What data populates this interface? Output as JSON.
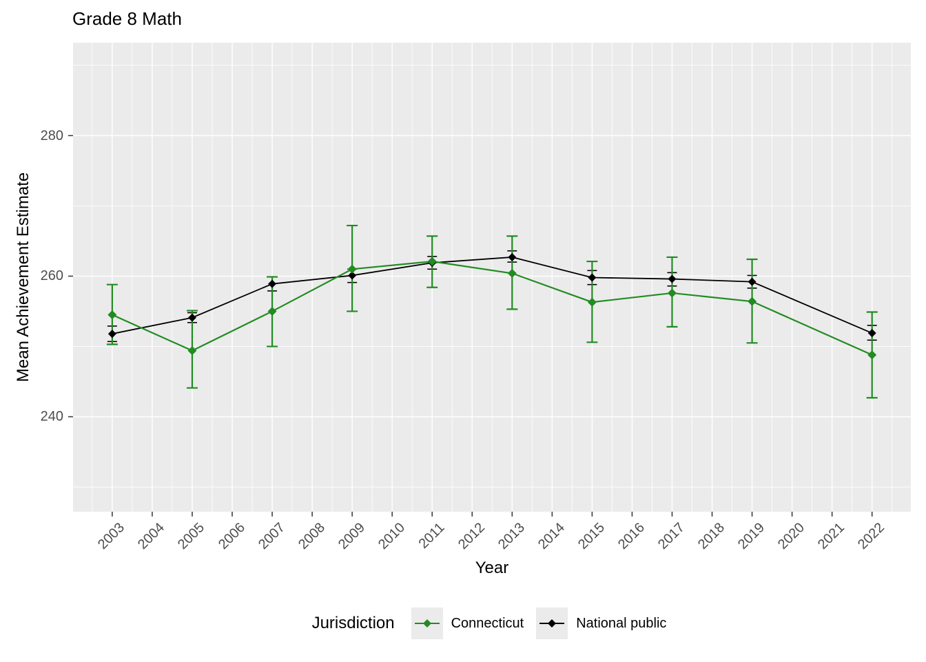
{
  "title": "Grade 8 Math",
  "chart_data": {
    "type": "line",
    "title": "Grade 8 Math",
    "xlabel": "Year",
    "ylabel": "Mean Achievement Estimate",
    "legend_title": "Jurisdiction",
    "legend_position": "bottom",
    "grid": true,
    "x_ticks": [
      2003,
      2004,
      2005,
      2006,
      2007,
      2008,
      2009,
      2010,
      2011,
      2012,
      2013,
      2014,
      2015,
      2016,
      2017,
      2018,
      2019,
      2020,
      2021,
      2022
    ],
    "y_ticks": [
      240,
      260,
      280
    ],
    "y_minor_ticks": [
      230,
      250,
      270,
      290
    ],
    "xlim": [
      2002.02,
      2022.97
    ],
    "ylim": [
      226.5,
      293.2
    ],
    "x": [
      2003,
      2005,
      2007,
      2009,
      2011,
      2013,
      2015,
      2017,
      2019,
      2022
    ],
    "series": [
      {
        "name": "National public",
        "color": "#000000",
        "marker": "diamond",
        "values": [
          251.8,
          254.1,
          258.9,
          260.1,
          261.9,
          262.7,
          259.8,
          259.6,
          259.2,
          251.9
        ],
        "ci_lower": [
          250.7,
          253.4,
          257.9,
          259.1,
          261.0,
          262.0,
          258.8,
          258.6,
          258.3,
          250.9
        ],
        "ci_upper": [
          252.9,
          254.8,
          259.9,
          261.0,
          262.8,
          263.6,
          260.8,
          260.5,
          260.1,
          253.0
        ]
      },
      {
        "name": "Connecticut",
        "color": "#228B22",
        "marker": "diamond",
        "values": [
          254.5,
          249.4,
          255.0,
          261.0,
          262.1,
          260.4,
          256.3,
          257.6,
          256.4,
          248.8
        ],
        "ci_lower": [
          250.3,
          244.1,
          250.0,
          255.0,
          258.4,
          255.3,
          250.6,
          252.8,
          250.5,
          242.7
        ],
        "ci_upper": [
          258.8,
          255.1,
          259.9,
          267.2,
          265.7,
          265.7,
          262.1,
          262.7,
          262.4,
          254.9
        ]
      }
    ],
    "legend_order": [
      "Connecticut",
      "National public"
    ]
  },
  "styles": {
    "panel_bg": "#EBEBEB",
    "grid_color": "#FFFFFF",
    "tick_label_color": "#4D4D4D",
    "axis_tick_color": "#333333",
    "legend_key_bg": "#EBEBEB",
    "text_color": "#000000"
  }
}
